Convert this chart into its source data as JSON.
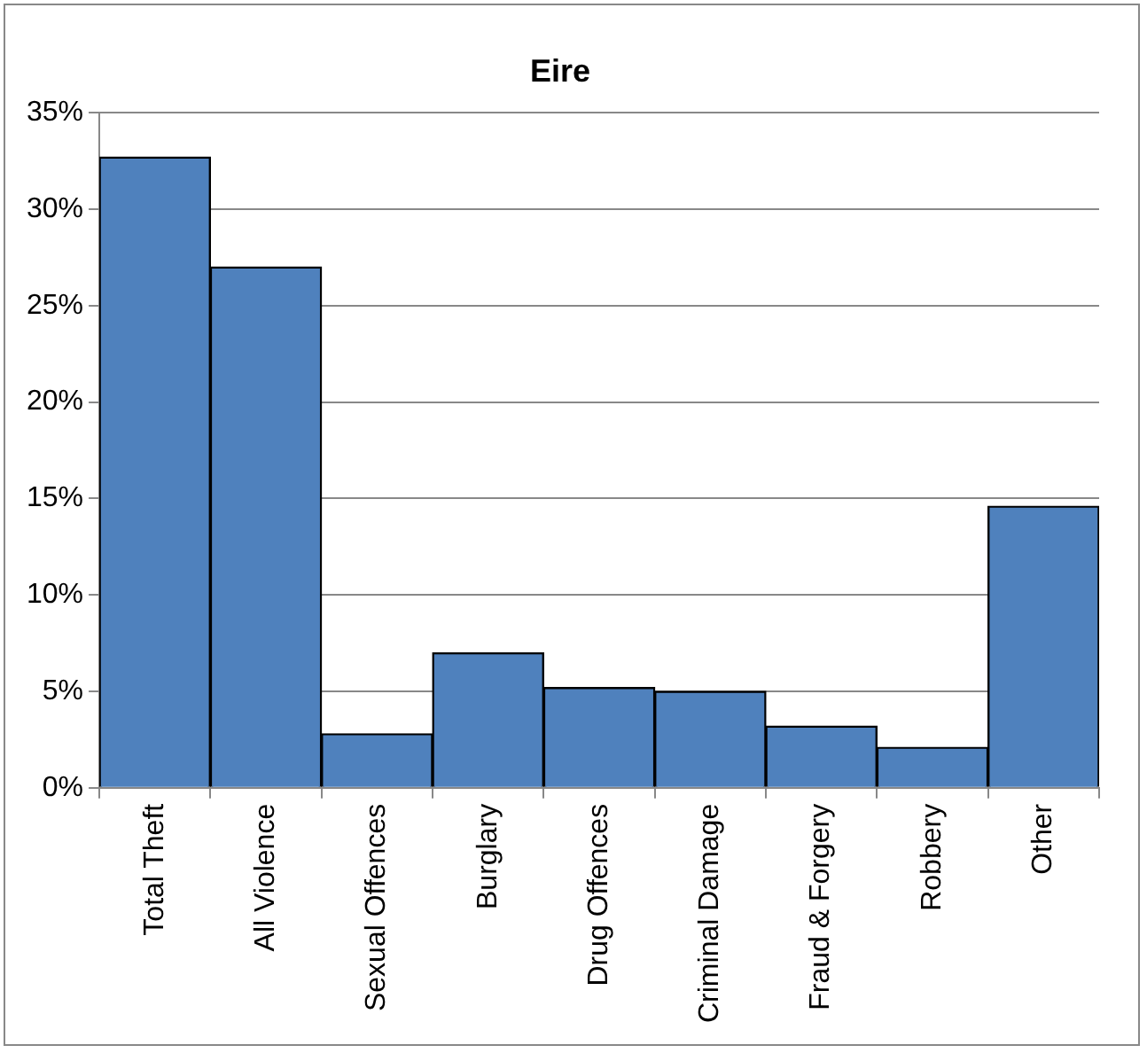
{
  "chart_data": {
    "type": "bar",
    "title": "Eire",
    "categories": [
      "Total Theft",
      "All Violence",
      "Sexual Offences",
      "Burglary",
      "Drug Offences",
      "Criminal Damage",
      "Fraud & Forgery",
      "Robbery",
      "Other"
    ],
    "values": [
      32.7,
      27.0,
      2.8,
      7.0,
      5.2,
      5.0,
      3.2,
      2.1,
      14.6
    ],
    "color": "#4f81bd",
    "ylim": [
      0,
      35
    ],
    "yticks": [
      {
        "value": 0,
        "label": "0%"
      },
      {
        "value": 5,
        "label": "5%"
      },
      {
        "value": 10,
        "label": "10%"
      },
      {
        "value": 15,
        "label": "15%"
      },
      {
        "value": 20,
        "label": "20%"
      },
      {
        "value": 25,
        "label": "25%"
      },
      {
        "value": 30,
        "label": "30%"
      },
      {
        "value": 35,
        "label": "35%"
      }
    ],
    "grid": "y",
    "legend": false
  }
}
